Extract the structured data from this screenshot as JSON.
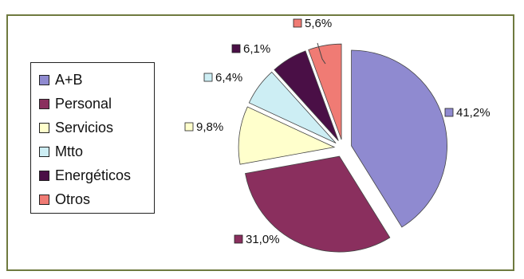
{
  "chart_data": {
    "type": "pie",
    "title": "",
    "legend_position": "left",
    "categories": [
      "A+B",
      "Personal",
      "Servicios",
      "Mtto",
      "Energéticos",
      "Otros"
    ],
    "values": [
      41.2,
      31.0,
      9.8,
      6.4,
      6.1,
      5.6
    ],
    "value_labels": [
      "41,2%",
      "31,0%",
      "9,8%",
      "6,4%",
      "6,1%",
      "5,6%"
    ],
    "colors": [
      "#8f8ad0",
      "#8a2f5e",
      "#ffffcc",
      "#cdeef4",
      "#4a0f46",
      "#f07b74"
    ]
  }
}
